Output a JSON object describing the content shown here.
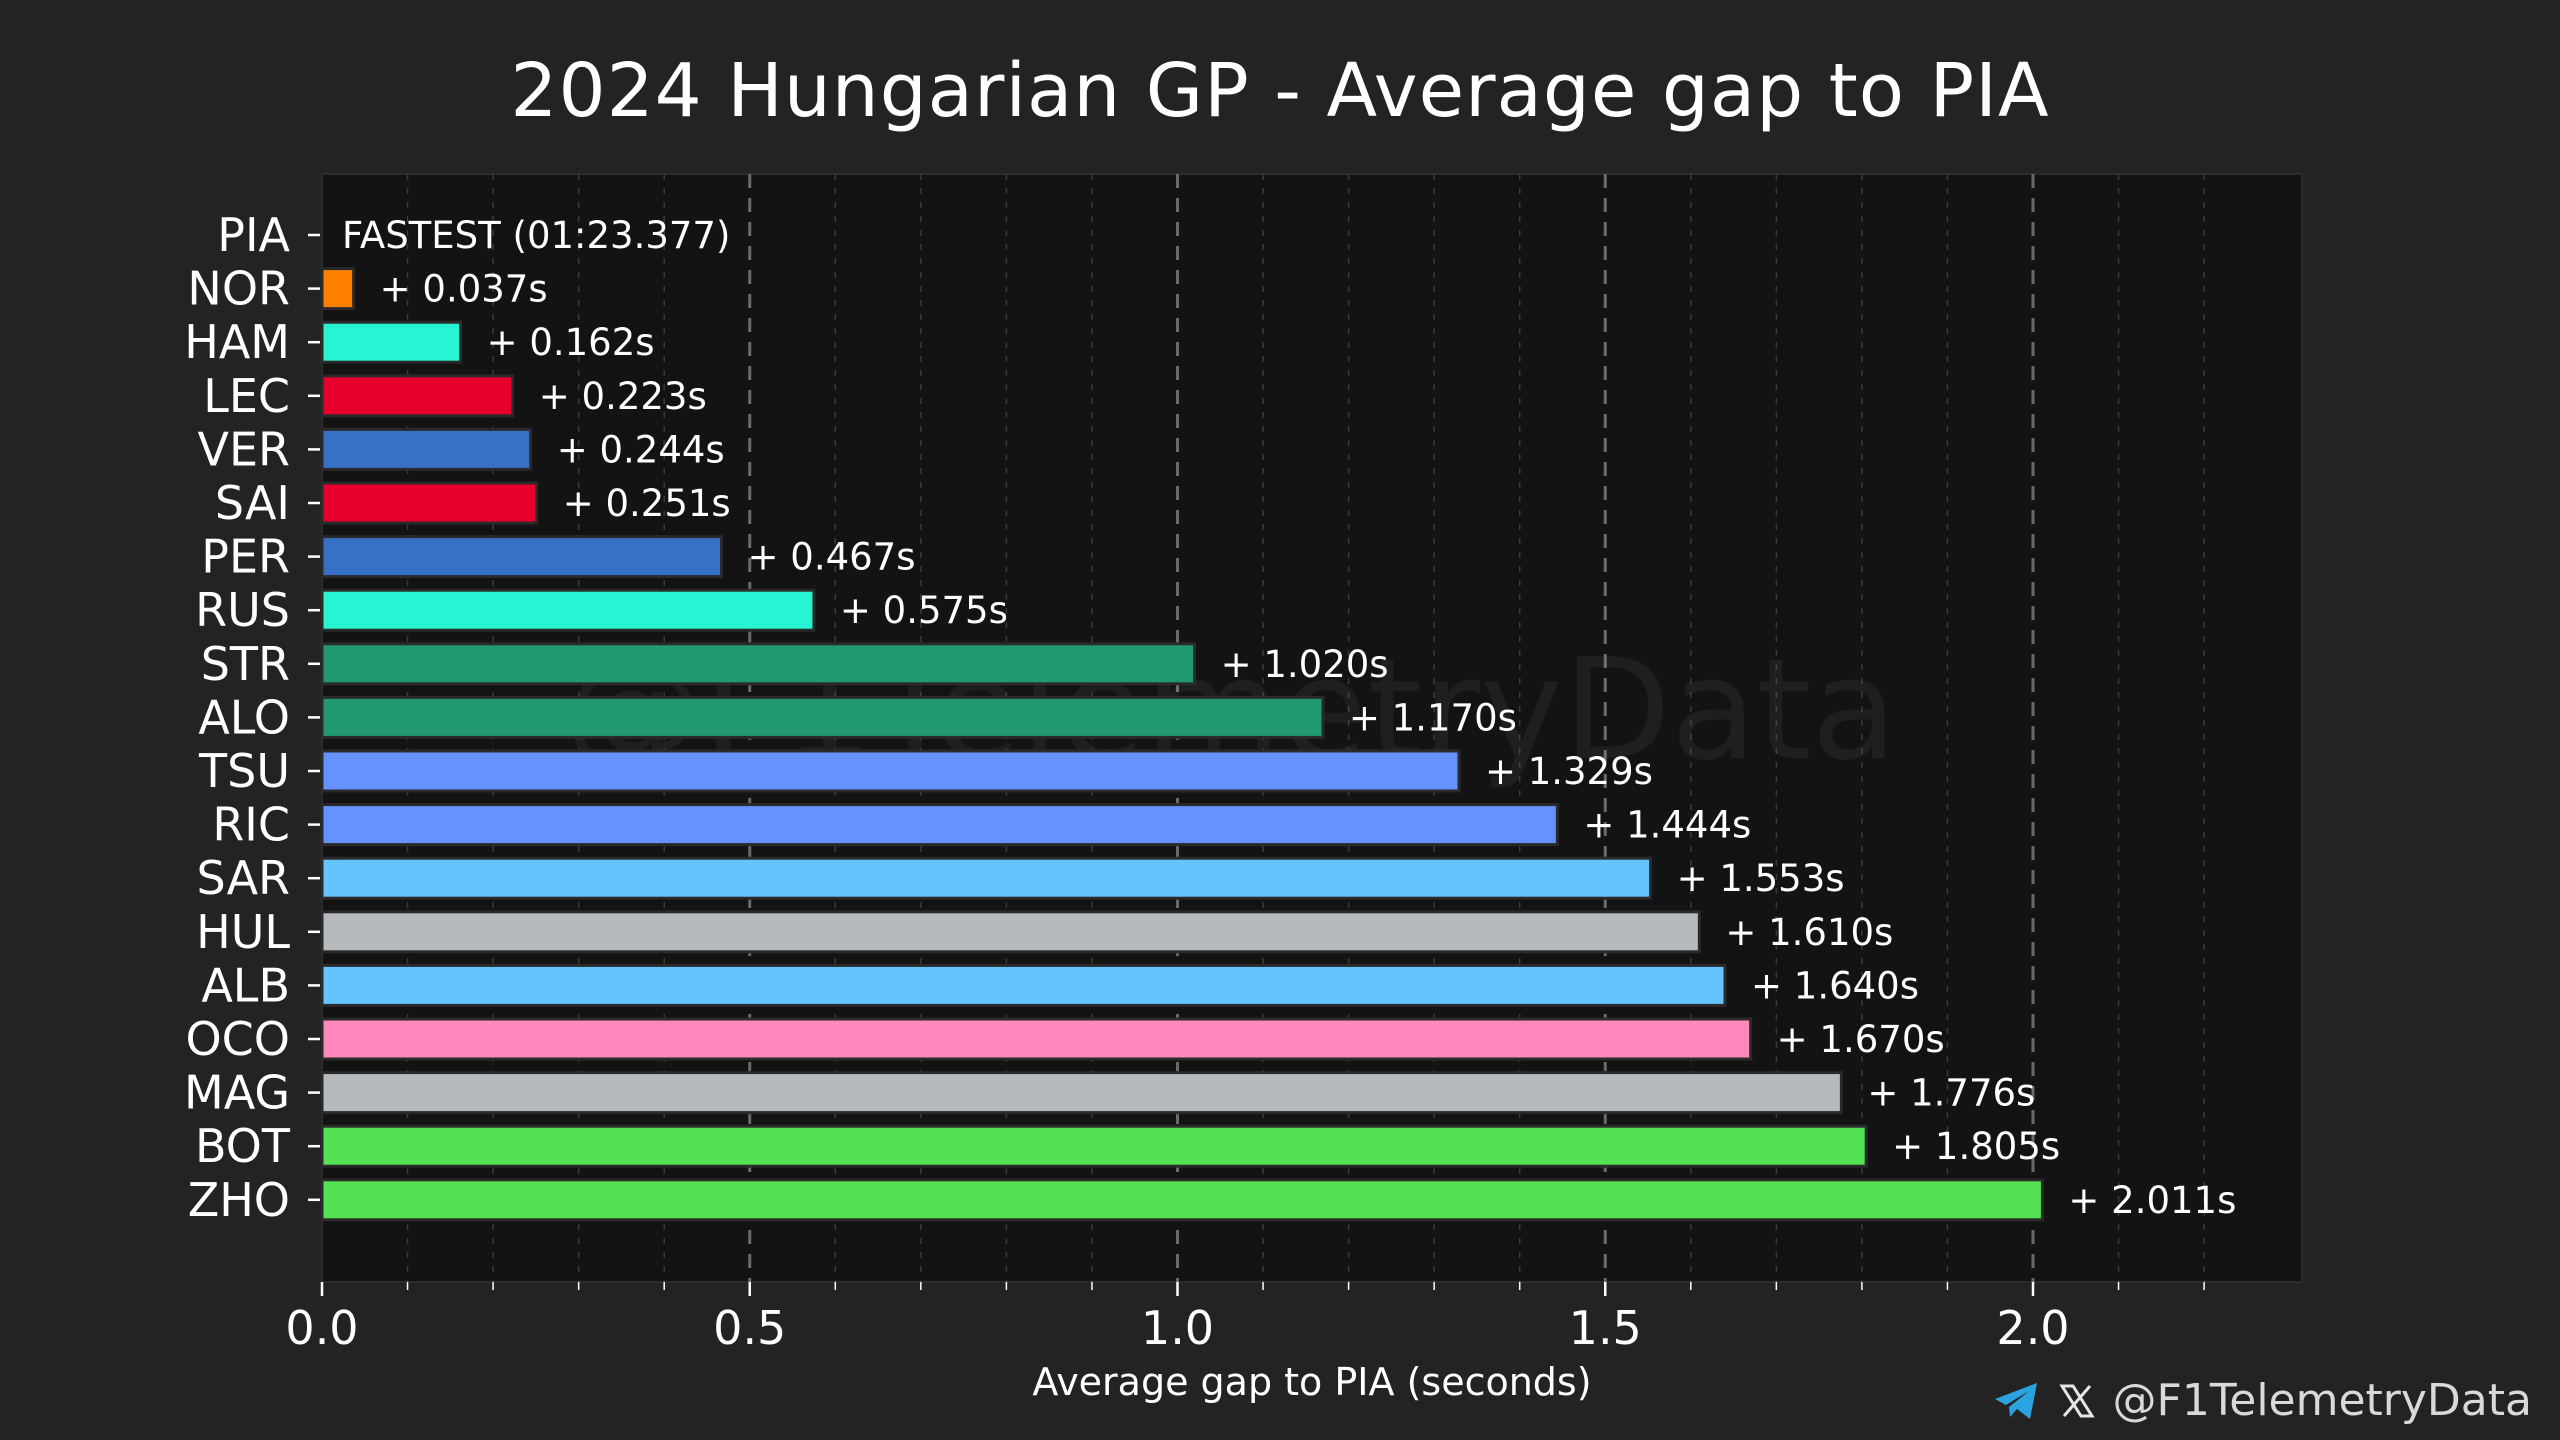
{
  "chart_data": {
    "type": "bar",
    "orientation": "horizontal",
    "title": "2024 Hungarian GP - Average gap to PIA",
    "xlabel": "Average gap to PIA (seconds)",
    "ylabel": "",
    "xlim": [
      0.0,
      2.3
    ],
    "xticks": [
      "0.0",
      "0.5",
      "1.0",
      "1.5",
      "2.0"
    ],
    "grid": "vertical dashed",
    "watermark": "@F1TelemetryData",
    "categories": [
      "PIA",
      "NOR",
      "HAM",
      "LEC",
      "VER",
      "SAI",
      "PER",
      "RUS",
      "STR",
      "ALO",
      "TSU",
      "RIC",
      "SAR",
      "HUL",
      "ALB",
      "OCO",
      "MAG",
      "BOT",
      "ZHO"
    ],
    "values": [
      0,
      0.037,
      0.162,
      0.223,
      0.244,
      0.251,
      0.467,
      0.575,
      1.02,
      1.17,
      1.329,
      1.444,
      1.553,
      1.61,
      1.64,
      1.67,
      1.776,
      1.805,
      2.011
    ],
    "labels": [
      "FASTEST (01:23.377)",
      "+ 0.037s",
      "+ 0.162s",
      "+ 0.223s",
      "+ 0.244s",
      "+ 0.251s",
      "+ 0.467s",
      "+ 0.575s",
      "+ 1.020s",
      "+ 1.170s",
      "+ 1.329s",
      "+ 1.444s",
      "+ 1.553s",
      "+ 1.610s",
      "+ 1.640s",
      "+ 1.670s",
      "+ 1.776s",
      "+ 1.805s",
      "+ 2.011s"
    ],
    "colors": [
      "#ff8000",
      "#ff8000",
      "#27f4d2",
      "#e8002d",
      "#3671c6",
      "#e8002d",
      "#3671c6",
      "#27f4d2",
      "#229971",
      "#229971",
      "#6692ff",
      "#6692ff",
      "#64c4ff",
      "#b6babd",
      "#64c4ff",
      "#ff87bc",
      "#b6babd",
      "#52e252",
      "#52e252"
    ]
  },
  "footer": {
    "handle": "@F1TelemetryData",
    "icons": [
      "telegram-icon",
      "x-icon"
    ]
  },
  "colors": {
    "background": "#232323",
    "plot_background": "#131313",
    "text": "#ffffff"
  }
}
